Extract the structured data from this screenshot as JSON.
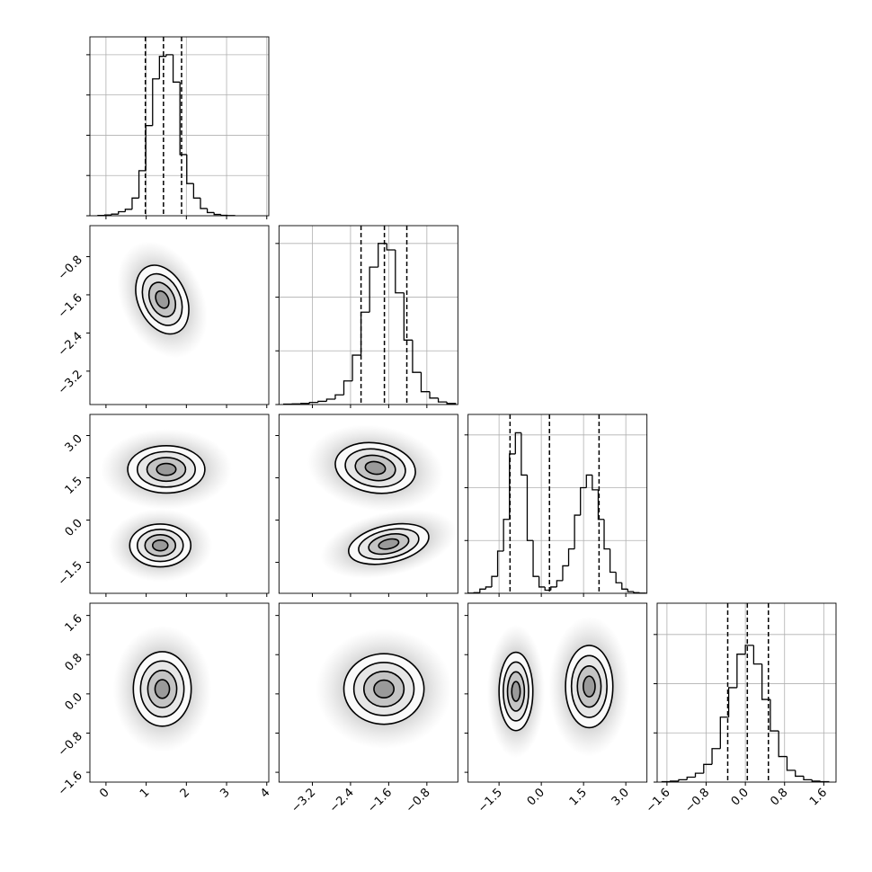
{
  "chart_data": {
    "type": "corner",
    "grid": true,
    "color": "#000000",
    "levels": [
      0.5,
      1,
      1.5,
      2
    ],
    "params": [
      {
        "lim": [
          -0.4,
          4.05
        ],
        "ticks": [
          0,
          1,
          2,
          3,
          4
        ],
        "bins": [
          -0.2,
          -0.03,
          0.14,
          0.31,
          0.48,
          0.65,
          0.82,
          0.99,
          1.16,
          1.33,
          1.5,
          1.67,
          1.84,
          2.01,
          2.18,
          2.35,
          2.52,
          2.69,
          2.86,
          3.03,
          3.2
        ],
        "counts": [
          2,
          5,
          10,
          25,
          40,
          110,
          280,
          560,
          850,
          990,
          1000,
          830,
          380,
          200,
          110,
          45,
          20,
          8,
          3,
          1
        ],
        "ylim": [
          0,
          1111
        ],
        "yticks": [
          0,
          250,
          500,
          750,
          1000
        ],
        "quantiles": [
          0.98,
          1.43,
          1.88
        ]
      },
      {
        "lim": [
          -3.9,
          -0.15
        ],
        "ticks": [
          {
            "value": -3.2,
            "label": "−3.2"
          },
          {
            "value": -2.4,
            "label": "−2.4"
          },
          {
            "value": -1.6,
            "label": "−1.6"
          },
          {
            "value": -0.8,
            "label": "−0.8"
          }
        ],
        "bins": [
          -3.8,
          -3.62,
          -3.44,
          -3.26,
          -3.08,
          -2.9,
          -2.72,
          -2.54,
          -2.36,
          -2.18,
          -2.0,
          -1.82,
          -1.64,
          -1.46,
          -1.28,
          -1.1,
          -0.92,
          -0.74,
          -0.56,
          -0.38,
          -0.2
        ],
        "counts": [
          2,
          3,
          5,
          10,
          15,
          25,
          45,
          110,
          230,
          430,
          640,
          750,
          720,
          520,
          300,
          150,
          60,
          30,
          12,
          5
        ],
        "ylim": [
          0,
          833
        ],
        "yticks": [
          0,
          250,
          500,
          750
        ],
        "quantiles": [
          -2.18,
          -1.69,
          -1.22
        ]
      },
      {
        "lim": [
          -2.6,
          3.75
        ],
        "ticks": [
          {
            "value": -1.5,
            "label": "−1.5"
          },
          {
            "value": 0,
            "label": "0.0"
          },
          1.5,
          {
            "value": 3,
            "label": "3.0"
          }
        ],
        "bins": [
          -2.6,
          -2.39,
          -2.18,
          -1.97,
          -1.76,
          -1.55,
          -1.34,
          -1.13,
          -0.92,
          -0.71,
          -0.5,
          -0.29,
          -0.08,
          0.13,
          0.34,
          0.55,
          0.76,
          0.97,
          1.18,
          1.39,
          1.6,
          1.81,
          2.02,
          2.23,
          2.44,
          2.65,
          2.86,
          3.07,
          3.28,
          3.49,
          3.7
        ],
        "counts": [
          1,
          3,
          20,
          30,
          80,
          200,
          350,
          660,
          760,
          560,
          250,
          80,
          30,
          15,
          30,
          60,
          130,
          210,
          370,
          500,
          560,
          490,
          350,
          210,
          100,
          50,
          20,
          8,
          3,
          1
        ],
        "ylim": [
          0,
          847
        ],
        "yticks": [
          0,
          250,
          500,
          750
        ],
        "quantiles": [
          -1.11,
          0.29,
          2.05
        ]
      },
      {
        "lim": [
          -1.8,
          1.85
        ],
        "ticks": [
          {
            "value": -1.6,
            "label": "−1.6"
          },
          {
            "value": -0.8,
            "label": "−0.8"
          },
          {
            "value": 0,
            "label": "0.0"
          },
          0.8,
          1.6
        ],
        "bins": [
          -1.7,
          -1.53,
          -1.36,
          -1.19,
          -1.02,
          -0.85,
          -0.68,
          -0.51,
          -0.34,
          -0.17,
          0.0,
          0.17,
          0.34,
          0.51,
          0.68,
          0.85,
          1.02,
          1.19,
          1.36,
          1.53,
          1.7
        ],
        "counts": [
          2,
          5,
          12,
          25,
          45,
          90,
          170,
          330,
          480,
          650,
          695,
          600,
          420,
          260,
          130,
          60,
          30,
          12,
          5,
          2
        ],
        "ylim": [
          0,
          909
        ],
        "yticks": [
          0,
          250,
          500,
          750
        ],
        "quantiles": [
          -0.36,
          0.04,
          0.47
        ]
      }
    ],
    "pairs": [
      [
        [
          {
            "x": 1.4,
            "y": -1.7,
            "sx": 0.33,
            "sy": 0.36,
            "rho": -0.3
          }
        ]
      ],
      [
        [
          {
            "x": 1.5,
            "y": 1.8,
            "sx": 0.48,
            "sy": 0.42,
            "rho": 0
          },
          {
            "x": 1.35,
            "y": -0.9,
            "sx": 0.38,
            "sy": 0.38,
            "rho": 0
          }
        ],
        [
          {
            "x": -1.88,
            "y": 1.85,
            "sx": 0.42,
            "sy": 0.45,
            "rho": -0.15
          },
          {
            "x": -1.6,
            "y": -0.85,
            "sx": 0.42,
            "sy": 0.36,
            "rho": 0.35
          }
        ]
      ],
      [
        [
          {
            "x": 1.4,
            "y": 0.1,
            "sx": 0.36,
            "sy": 0.38,
            "rho": 0
          }
        ],
        [
          {
            "x": -1.7,
            "y": 0.1,
            "sx": 0.42,
            "sy": 0.36,
            "rho": 0
          }
        ],
        [
          {
            "x": -0.9,
            "y": 0.05,
            "sx": 0.3,
            "sy": 0.4,
            "rho": 0
          },
          {
            "x": 1.7,
            "y": 0.15,
            "sx": 0.42,
            "sy": 0.42,
            "rho": 0
          }
        ]
      ]
    ]
  }
}
